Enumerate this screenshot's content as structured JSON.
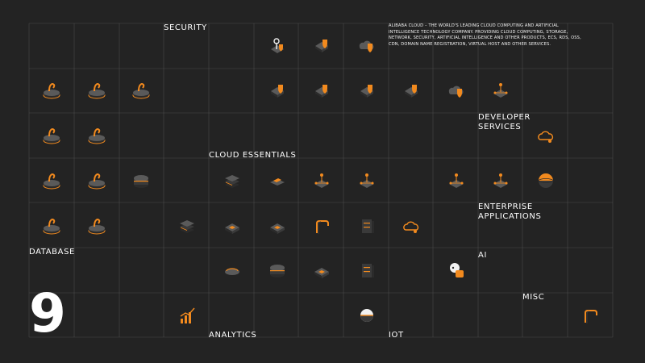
{
  "page_number": "9",
  "description": "Alibaba Cloud – The World's leading cloud computing and artificial intelligence technology company. Providing cloud computing, storage, network, security, artificial intelligence and other products, ECS, RDS, OSS, CDN, domain name registration, virtual host and other services.",
  "categories": {
    "security": "SECURITY",
    "cloud_essentials": "CLOUD ESSENTIALS",
    "developer_services": "DEVELOPER SERVICES",
    "enterprise_applications": "ENTERPRISE APPLICATIONS",
    "database": "DATABASE",
    "ai": "AI",
    "misc": "MISC",
    "analytics": "ANALYTICS",
    "iot": "IOT"
  },
  "colors": {
    "background": "#232323",
    "grid_line": "#4a4a4a",
    "accent": "#f28a1e",
    "icon_base": "#3a3a3a"
  },
  "icons": [
    {
      "name": "security-key-icon",
      "kind": "key"
    },
    {
      "name": "security-shield-box-icon",
      "kind": "shield"
    },
    {
      "name": "security-shield-cloud-icon",
      "kind": "shield-cloud"
    },
    {
      "name": "security-bomb-shield-icon",
      "kind": "shield"
    },
    {
      "name": "security-shield-network-icon",
      "kind": "shield"
    },
    {
      "name": "security-shield-server-icon",
      "kind": "shield"
    },
    {
      "name": "security-shield-panel-icon",
      "kind": "shield"
    },
    {
      "name": "security-shield-cloud-2-icon",
      "kind": "shield-cloud"
    },
    {
      "name": "developer-hierarchy-icon",
      "kind": "node"
    },
    {
      "name": "database-hook-icon",
      "kind": "platform"
    },
    {
      "name": "database-gear-icon",
      "kind": "platform"
    },
    {
      "name": "database-curve-icon",
      "kind": "platform"
    },
    {
      "name": "database-drop-icon",
      "kind": "platform"
    },
    {
      "name": "database-pin-icon",
      "kind": "platform"
    },
    {
      "name": "developer-cloud-icon",
      "kind": "cloud"
    },
    {
      "name": "database-leaf-icon",
      "kind": "platform"
    },
    {
      "name": "database-molecule-icon",
      "kind": "platform"
    },
    {
      "name": "database-disk-icon",
      "kind": "disk"
    },
    {
      "name": "cloud-layers-icon",
      "kind": "layers"
    },
    {
      "name": "cloud-tag-icon",
      "kind": "tag"
    },
    {
      "name": "cloud-pyramid-icon",
      "kind": "node"
    },
    {
      "name": "cloud-network-icon",
      "kind": "node"
    },
    {
      "name": "enterprise-network-icon",
      "kind": "node"
    },
    {
      "name": "enterprise-nodes-icon",
      "kind": "node"
    },
    {
      "name": "enterprise-globe-icon",
      "kind": "globe"
    },
    {
      "name": "database-rabbit-icon",
      "kind": "platform"
    },
    {
      "name": "database-atom-icon",
      "kind": "platform"
    },
    {
      "name": "cloud-stack-icon",
      "kind": "layers"
    },
    {
      "name": "cloud-chip-icon",
      "kind": "chip"
    },
    {
      "name": "cloud-slab-icon",
      "kind": "chip"
    },
    {
      "name": "cloud-rail-icon",
      "kind": "rail"
    },
    {
      "name": "cloud-server-icon",
      "kind": "server"
    },
    {
      "name": "cloud-dns-icon",
      "kind": "cloud"
    },
    {
      "name": "cloud-orbit-icon",
      "kind": "orbit"
    },
    {
      "name": "cloud-cylinder-icon",
      "kind": "disk"
    },
    {
      "name": "cloud-cube-icon",
      "kind": "chip"
    },
    {
      "name": "cloud-pillar-icon",
      "kind": "server"
    },
    {
      "name": "ai-robot-icon",
      "kind": "robot"
    },
    {
      "name": "analytics-chart-icon",
      "kind": "chart"
    },
    {
      "name": "iot-sphere-icon",
      "kind": "sphere"
    },
    {
      "name": "misc-arch-icon",
      "kind": "rail"
    }
  ]
}
